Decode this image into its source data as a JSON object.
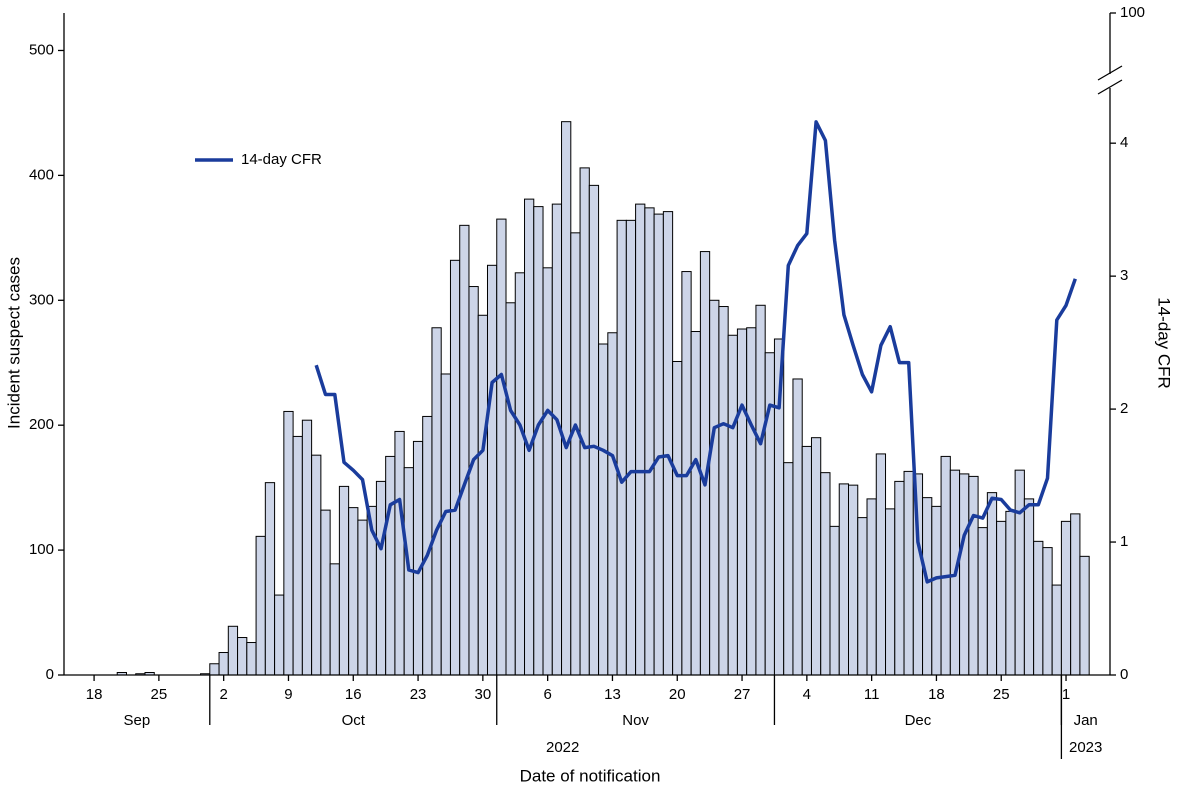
{
  "chart_data": {
    "type": "combo",
    "x_label": "Date of notification",
    "y_label": "Incident suspect cases",
    "y2_label": "14-day CFR",
    "legend": "upper left",
    "xlim": [
      "2022-09-15",
      "2023-01-06"
    ],
    "xticks": [
      {
        "value": "2022-09-18",
        "label": "18"
      },
      {
        "value": "2022-09-25",
        "label": "25"
      },
      {
        "value": "2022-10-02",
        "label": "2"
      },
      {
        "value": "2022-10-09",
        "label": "9"
      },
      {
        "value": "2022-10-16",
        "label": "16"
      },
      {
        "value": "2022-10-23",
        "label": "23"
      },
      {
        "value": "2022-10-30",
        "label": "30"
      },
      {
        "value": "2022-11-06",
        "label": "6"
      },
      {
        "value": "2022-11-13",
        "label": "13"
      },
      {
        "value": "2022-11-20",
        "label": "20"
      },
      {
        "value": "2022-11-27",
        "label": "27"
      },
      {
        "value": "2022-12-04",
        "label": "4"
      },
      {
        "value": "2022-12-11",
        "label": "11"
      },
      {
        "value": "2022-12-18",
        "label": "18"
      },
      {
        "value": "2022-12-25",
        "label": "25"
      },
      {
        "value": "2023-01-01",
        "label": "1"
      }
    ],
    "months": [
      {
        "value": "2022-09",
        "label": "Sep"
      },
      {
        "value": "2022-10",
        "label": "Oct"
      },
      {
        "value": "2022-11",
        "label": "Nov"
      },
      {
        "value": "2022-12",
        "label": "Dec"
      },
      {
        "value": "2023-01",
        "label": "Jan"
      }
    ],
    "years": [
      {
        "value": "2022",
        "label": "2022"
      },
      {
        "value": "2023",
        "label": "2023"
      }
    ],
    "ylim": [
      0,
      530
    ],
    "yticks": [
      0,
      100,
      200,
      300,
      400,
      500
    ],
    "y2lim": [
      0,
      100
    ],
    "y2ticks": [
      0,
      1,
      2,
      3,
      4,
      100
    ],
    "y2_break": true,
    "x": [
      "2022-09-21",
      "2022-09-22",
      "2022-09-23",
      "2022-09-24",
      "2022-09-25",
      "2022-09-26",
      "2022-09-27",
      "2022-09-28",
      "2022-09-29",
      "2022-09-30",
      "2022-10-01",
      "2022-10-02",
      "2022-10-03",
      "2022-10-04",
      "2022-10-05",
      "2022-10-06",
      "2022-10-07",
      "2022-10-08",
      "2022-10-09",
      "2022-10-10",
      "2022-10-11",
      "2022-10-12",
      "2022-10-13",
      "2022-10-14",
      "2022-10-15",
      "2022-10-16",
      "2022-10-17",
      "2022-10-18",
      "2022-10-19",
      "2022-10-20",
      "2022-10-21",
      "2022-10-22",
      "2022-10-23",
      "2022-10-24",
      "2022-10-25",
      "2022-10-26",
      "2022-10-27",
      "2022-10-28",
      "2022-10-29",
      "2022-10-30",
      "2022-10-31",
      "2022-11-01",
      "2022-11-02",
      "2022-11-03",
      "2022-11-04",
      "2022-11-05",
      "2022-11-06",
      "2022-11-07",
      "2022-11-08",
      "2022-11-09",
      "2022-11-10",
      "2022-11-11",
      "2022-11-12",
      "2022-11-13",
      "2022-11-14",
      "2022-11-15",
      "2022-11-16",
      "2022-11-17",
      "2022-11-18",
      "2022-11-19",
      "2022-11-20",
      "2022-11-21",
      "2022-11-22",
      "2022-11-23",
      "2022-11-24",
      "2022-11-25",
      "2022-11-26",
      "2022-11-27",
      "2022-11-28",
      "2022-11-29",
      "2022-11-30",
      "2022-12-01",
      "2022-12-02",
      "2022-12-03",
      "2022-12-04",
      "2022-12-05",
      "2022-12-06",
      "2022-12-07",
      "2022-12-08",
      "2022-12-09",
      "2022-12-10",
      "2022-12-11",
      "2022-12-12",
      "2022-12-13",
      "2022-12-14",
      "2022-12-15",
      "2022-12-16",
      "2022-12-17",
      "2022-12-18",
      "2022-12-19",
      "2022-12-20",
      "2022-12-21",
      "2022-12-22",
      "2022-12-23",
      "2022-12-24",
      "2022-12-25",
      "2022-12-26",
      "2022-12-27",
      "2022-12-28",
      "2022-12-29",
      "2022-12-30",
      "2022-12-31",
      "2023-01-01",
      "2023-01-02",
      "2023-01-03"
    ],
    "series": [
      {
        "type": "bar",
        "color": "#cdd5e8",
        "values": [
          2,
          0,
          1,
          2,
          0,
          0,
          0,
          0,
          0,
          1,
          9,
          18,
          39,
          30,
          26,
          111,
          154,
          64,
          211,
          191,
          204,
          176,
          132,
          89,
          151,
          134,
          124,
          135,
          155,
          175,
          195,
          166,
          187,
          207,
          278,
          241,
          332,
          360,
          311,
          288,
          328,
          365,
          298,
          322,
          381,
          375,
          326,
          377,
          443,
          354,
          406,
          392,
          265,
          274,
          364,
          364,
          377,
          374,
          369,
          371,
          251,
          323,
          275,
          339,
          300,
          295,
          272,
          277,
          278,
          296,
          258,
          269,
          170,
          237,
          183,
          190,
          162,
          119,
          153,
          152,
          126,
          141,
          177,
          133,
          155,
          163,
          161,
          142,
          135,
          175,
          164,
          161,
          159,
          118,
          146,
          123,
          131,
          164,
          141,
          107,
          102,
          72,
          123,
          129,
          95
        ]
      },
      {
        "type": "line",
        "name": "14-day CFR",
        "color": "#1a3c9c",
        "axis": "y2",
        "values": [
          null,
          null,
          null,
          null,
          null,
          null,
          null,
          null,
          null,
          null,
          null,
          null,
          null,
          null,
          null,
          null,
          null,
          null,
          null,
          null,
          null,
          2.33,
          2.11,
          2.11,
          1.6,
          1.54,
          1.47,
          1.09,
          0.95,
          1.28,
          1.32,
          0.79,
          0.77,
          0.9,
          1.09,
          1.23,
          1.24,
          1.43,
          1.62,
          1.69,
          2.2,
          2.26,
          1.99,
          1.88,
          1.69,
          1.88,
          1.99,
          1.92,
          1.71,
          1.88,
          1.71,
          1.72,
          1.69,
          1.65,
          1.45,
          1.53,
          1.53,
          1.53,
          1.64,
          1.65,
          1.5,
          1.5,
          1.62,
          1.43,
          1.86,
          1.89,
          1.86,
          2.03,
          1.88,
          1.74,
          2.03,
          2.01,
          3.08,
          3.23,
          3.32,
          4.16,
          4.02,
          3.27,
          2.71,
          2.48,
          2.26,
          2.13,
          2.48,
          2.62,
          2.35,
          2.35,
          1.0,
          0.7,
          0.73,
          0.74,
          0.75,
          1.05,
          1.2,
          1.18,
          1.33,
          1.32,
          1.24,
          1.22,
          1.28,
          1.28,
          1.48,
          2.67,
          2.78,
          2.98,
          null
        ]
      }
    ]
  }
}
